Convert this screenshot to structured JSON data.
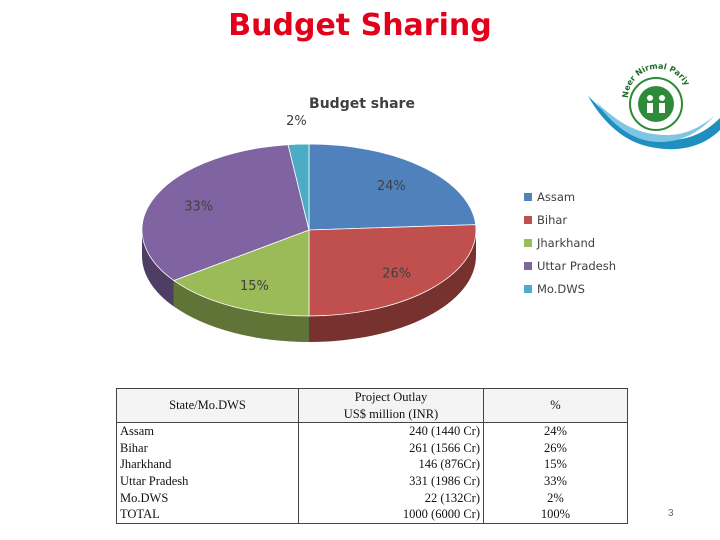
{
  "slide": {
    "title": "Budget Sharing",
    "page_number": "3"
  },
  "chart_data": {
    "type": "pie",
    "title": "Budget share",
    "legend_position": "right",
    "series": [
      {
        "name": "Assam",
        "value": 24,
        "label": "24%",
        "color": "#4f81bd"
      },
      {
        "name": "Bihar",
        "value": 26,
        "label": "26%",
        "color": "#c0504d"
      },
      {
        "name": "Jharkhand",
        "value": 15,
        "label": "15%",
        "color": "#9bbb59"
      },
      {
        "name": "Uttar Pradesh",
        "value": 33,
        "label": "33%",
        "color": "#8064a2"
      },
      {
        "name": "Mo.DWS",
        "value": 2,
        "label": "2%",
        "color": "#4bacc6"
      }
    ]
  },
  "logo": {
    "text": "Neer Nirmal Pariyojana"
  },
  "table": {
    "header_state": "State/Mo.DWS",
    "header_outlay_line1": "Project Outlay",
    "header_outlay_line2": "US$ million (INR)",
    "header_pct": "%",
    "rows": [
      {
        "state": "Assam",
        "outlay": "240 (1440 Cr)",
        "pct": "24%"
      },
      {
        "state": "Bihar",
        "outlay": "261 (1566 Cr)",
        "pct": "26%"
      },
      {
        "state": "Jharkhand",
        "outlay": "146 (876Cr)",
        "pct": "15%"
      },
      {
        "state": "Uttar Pradesh",
        "outlay": "331 (1986 Cr)",
        "pct": "33%"
      },
      {
        "state": "Mo.DWS",
        "outlay": "22 (132Cr)",
        "pct": "2%"
      },
      {
        "state": "TOTAL",
        "outlay": "1000 (6000 Cr)",
        "pct": "100%"
      }
    ]
  }
}
